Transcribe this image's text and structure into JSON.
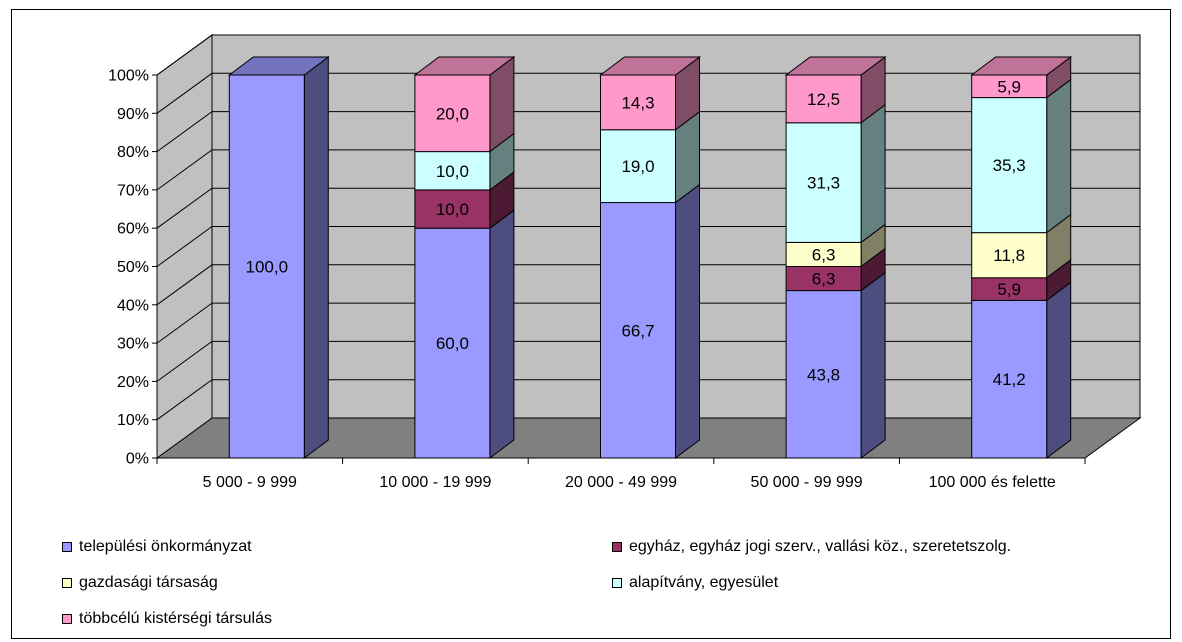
{
  "chart_data": {
    "type": "bar",
    "stacked": true,
    "percent_stacked": true,
    "three_d": true,
    "categories": [
      "5 000 - 9 999",
      "10 000 - 19 999",
      "20 000 - 49 999",
      "50 000 - 99 999",
      "100 000 és felette"
    ],
    "series": [
      {
        "name": "települési önkormányzat",
        "color": "#9999ff",
        "values": [
          100.0,
          60.0,
          66.7,
          43.8,
          41.2
        ],
        "labels": [
          "100,0",
          "60,0",
          "66,7",
          "43,8",
          "41,2"
        ]
      },
      {
        "name": "egyház, egyház jogi szerv., vallási köz., szeretetszolg.",
        "color": "#993366",
        "values": [
          0,
          10.0,
          0,
          6.3,
          5.9
        ],
        "labels": [
          "",
          "10,0",
          "",
          "6,3",
          "5,9"
        ]
      },
      {
        "name": "gazdasági társaság",
        "color": "#ffffcc",
        "values": [
          0,
          0,
          0,
          6.3,
          11.8
        ],
        "labels": [
          "",
          "",
          "",
          "6,3",
          "11,8"
        ]
      },
      {
        "name": "alapítvány, egyesület",
        "color": "#ccffff",
        "values": [
          0,
          10.0,
          19.0,
          31.3,
          35.3
        ],
        "labels": [
          "",
          "10,0",
          "19,0",
          "31,3",
          "35,3"
        ]
      },
      {
        "name": "többcélú kistérségi társulás",
        "color": "#ff99cc",
        "values": [
          0,
          20.0,
          14.3,
          12.5,
          5.9
        ],
        "labels": [
          "",
          "20,0",
          "14,3",
          "12,5",
          "5,9"
        ]
      }
    ],
    "ylim": [
      0,
      100
    ],
    "yticks": [
      "0%",
      "10%",
      "20%",
      "30%",
      "40%",
      "50%",
      "60%",
      "70%",
      "80%",
      "90%",
      "100%"
    ],
    "grid": true,
    "legend_position": "bottom"
  }
}
